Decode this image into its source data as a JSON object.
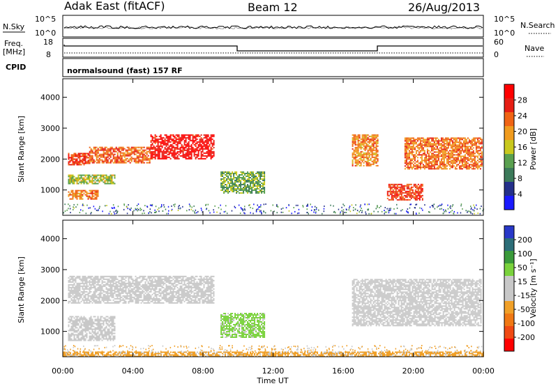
{
  "header": {
    "radar": "Adak East (fitACF)",
    "beam": "Beam 12",
    "date": "26/Aug/2013"
  },
  "noise_panel": {
    "left_label": "N.Sky",
    "right_label": "N.Search",
    "left_ticks": [
      "10^5",
      "10^0"
    ],
    "right_ticks": [
      "10^5",
      "10^0"
    ]
  },
  "freq_panel": {
    "left_label_1": "Freq.",
    "left_label_2": "[MHz]",
    "right_label": "Nave",
    "left_ticks": [
      "18",
      "8"
    ],
    "right_ticks": [
      "60",
      "0"
    ],
    "cpid_label": "CPID",
    "cpid_text": "normalsound (fast) 157 RF"
  },
  "colors": {
    "power_scale": [
      "#1a1aff",
      "#24308a",
      "#3c7a5a",
      "#5aa050",
      "#c8c81e",
      "#f09b1e",
      "#f06414",
      "#e61e14",
      "#ff0000"
    ],
    "velocity_scale": [
      "#2838c8",
      "#2c6e78",
      "#3a9a3a",
      "#7ad23c",
      "#c8c8c8",
      "#c8c8c8",
      "#f0a028",
      "#f07814",
      "#f04a14",
      "#ff0000"
    ],
    "panel_frame": "#000000",
    "ground_scatter": "#bdbdbd"
  },
  "chart_data": [
    {
      "type": "heatmap",
      "panel": "power",
      "ylabel": "Slant Range [km]",
      "yticks": [
        "4000",
        "3000",
        "2000",
        "1000"
      ],
      "ylim": [
        180,
        4600
      ],
      "xlim_hours": [
        0,
        24
      ],
      "colorbar": {
        "label": "Power [dB]",
        "ticks": [
          "28",
          "24",
          "20",
          "16",
          "12",
          "8",
          "4"
        ],
        "range": [
          0,
          30
        ]
      },
      "echo_regions": [
        {
          "t": [
            0.3,
            1.5
          ],
          "range": [
            1800,
            2200
          ],
          "value": 24
        },
        {
          "t": [
            1.5,
            5.0
          ],
          "range": [
            1900,
            2400
          ],
          "value": 22
        },
        {
          "t": [
            5.0,
            8.6
          ],
          "range": [
            2000,
            2800
          ],
          "value": 27
        },
        {
          "t": [
            0.3,
            2.0
          ],
          "range": [
            700,
            1000
          ],
          "value": 20
        },
        {
          "t": [
            0.3,
            3.0
          ],
          "range": [
            1200,
            1500
          ],
          "value": 14
        },
        {
          "t": [
            9.0,
            11.5
          ],
          "range": [
            900,
            1600
          ],
          "value": 12
        },
        {
          "t": [
            16.5,
            18.0
          ],
          "range": [
            1800,
            2800
          ],
          "value": 20
        },
        {
          "t": [
            18.5,
            20.5
          ],
          "range": [
            700,
            1200
          ],
          "value": 24
        },
        {
          "t": [
            19.5,
            23.9
          ],
          "range": [
            1700,
            2700
          ],
          "value": 21
        }
      ]
    },
    {
      "type": "heatmap",
      "panel": "velocity",
      "ylabel": "Slant Range [km]",
      "yticks": [
        "4000",
        "3000",
        "2000",
        "1000"
      ],
      "ylim": [
        180,
        4600
      ],
      "xlim_hours": [
        0,
        24
      ],
      "xlabel": "Time UT",
      "xticks": [
        "00:00",
        "04:00",
        "08:00",
        "12:00",
        "16:00",
        "20:00",
        "00:00"
      ],
      "colorbar": {
        "label": "Velocity [m s⁻¹]",
        "ticks": [
          "200",
          "100",
          "50",
          "15",
          "-15",
          "-50",
          "-100",
          "-200"
        ],
        "range": [
          -250,
          250
        ]
      },
      "echo_regions": [
        {
          "t": [
            0.3,
            8.6
          ],
          "range": [
            1900,
            2800
          ],
          "value": 0
        },
        {
          "t": [
            0.3,
            3.0
          ],
          "range": [
            700,
            1500
          ],
          "value": 0
        },
        {
          "t": [
            9.0,
            11.5
          ],
          "range": [
            800,
            1600
          ],
          "value": 60
        },
        {
          "t": [
            16.5,
            23.9
          ],
          "range": [
            1200,
            2700
          ],
          "value": 0
        },
        {
          "t": [
            0.0,
            24.0
          ],
          "range": [
            180,
            350
          ],
          "value": -60
        }
      ]
    }
  ]
}
